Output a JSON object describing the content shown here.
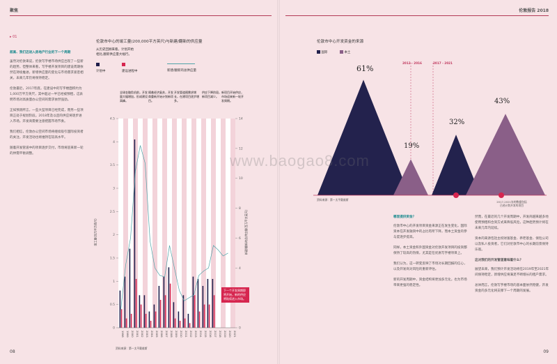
{
  "header": {
    "left": "聚焦",
    "right": "伦敦报告 2018"
  },
  "page_numbers": {
    "left": "08",
    "right": "09"
  },
  "section_tag": "▸ 01",
  "left_text": {
    "heading": "超高、我们迈进入房地产行业的下一个周期",
    "paragraphs": [
      "虽然对伦敦来说，伦敦写字楼市场供应出现了一些新的趋势，但整体来看，写字楼开发项目的建设周期依然在持续推进，新增供应量的变化与市场需求紧密相关，未来几年仍将保持稳定。",
      "伦敦最近，2017年底，在建设中的写字楼面积约为1,000万平方英尺，其中超过一半已经被预租，这表明市场对高质量办公空间的需求依然强劲。",
      "正如预测所言，一些大型项目已经完成，而另一些项目正处于规划阶段。2018年及以后的供应将逐步进入市场，开发商需要注意把握市场节奏。",
      "我们相信，伦敦办公空间市场将继续吸引国际投资者的关注，开发活动也将维持在较高水平。",
      "随着开发管道中的项目逐步交付，市场将迎来新一轮的供需平衡调整。"
    ]
  },
  "bar_chart": {
    "title": "伦敦市中心的竣工量(200,000平方英尺)与新建/翻新的供应量",
    "legend_title": "从历史回顾来看，计划开始\n相比,翻新供应量大幅行。",
    "legend": [
      {
        "label": "计划中",
        "color": "#1f1d4a"
      },
      {
        "label": "建设进程中",
        "color": "#d6264f"
      },
      {
        "label": "新建/翻新的总供应量",
        "color": "#4fa3a8"
      }
    ],
    "annotations": [
      "全球金融危机前，开发量大幅增加，形成建设高峰。",
      "随着经济复苏，开发商重新开始计划新项目。",
      "开发管道随需求增长，在建项目逐步增多。",
      "供应下降阶段，新项目减少。",
      "新项目开始供应，市场迎来新一轮开发周期。"
    ],
    "callout": "下一个开发周期即将开始，新的供应将陆续进入市场。",
    "y_left_title": "竣工量(百万平方英尺)",
    "y_right_title": "新建/翻新的总供应量(百万平方英尺)",
    "y_left_ticks": [
      "0",
      "0.5",
      "1",
      "1.5",
      "2",
      "2.5",
      "3",
      "3.5",
      "4",
      "4.5"
    ],
    "y_right_ticks": [
      "0",
      "2",
      "4",
      "6",
      "8",
      "10",
      "12",
      "14"
    ],
    "source": "资料来源：第一太平戴维斯"
  },
  "chart_data": [
    {
      "type": "bar",
      "title": "伦敦市中心的竣工量(200,000平方英尺)与新建/翻新的供应量",
      "categories": [
        "1998",
        "1999",
        "2000",
        "2001",
        "2002",
        "2003",
        "2004",
        "2005",
        "2006",
        "2007",
        "2008",
        "2009",
        "2010",
        "2011",
        "2012",
        "2013",
        "2014",
        "2015",
        "2016",
        "2017",
        "2018",
        "2019",
        "2020",
        "2021"
      ],
      "series": [
        {
          "name": "计划中",
          "values": [
            0.8,
            1.1,
            1.7,
            4.05,
            0.7,
            0.7,
            0.35,
            0.5,
            0.9,
            1.1,
            1.3,
            0.55,
            0.35,
            0.7,
            0.3,
            1.1,
            1.05,
            0.9,
            1.05,
            1.05,
            0.0,
            0.0,
            0.0,
            0.0
          ]
        },
        {
          "name": "建设进程中",
          "values": [
            0.4,
            0.2,
            0.3,
            1.05,
            0.5,
            0.3,
            0.15,
            0.35,
            0.6,
            0.7,
            0.95,
            0.2,
            0.15,
            0.2,
            0.1,
            0.7,
            0.35,
            0.5,
            0.5,
            0.7,
            0.0,
            0.0,
            0.0,
            0.0
          ]
        },
        {
          "name": "新建/翻新的总供应量",
          "values": [
            1.2,
            4.2,
            6.0,
            10.5,
            12.2,
            11.0,
            5.8,
            4.0,
            3.5,
            3.4,
            5.5,
            4.0,
            2.5,
            1.8,
            2.0,
            2.2,
            3.5,
            3.8,
            4.0,
            5.5,
            5.2,
            4.8,
            5.0,
            null
          ]
        }
      ],
      "ylim": [
        0,
        4.5
      ],
      "y2lim": [
        0,
        14
      ]
    },
    {
      "type": "area",
      "title": "伦敦市中心开发资金的来源",
      "series": [
        {
          "name": "国际",
          "values": [
            61,
            32
          ]
        },
        {
          "name": "本土",
          "values": [
            19,
            43
          ]
        }
      ],
      "categories": [
        "2012 - 2016",
        "2017 - 2021"
      ]
    }
  ],
  "tri_chart": {
    "title": "伦敦市中心开发资金的来源",
    "legend": [
      {
        "label": "国际",
        "color": "#23224d"
      },
      {
        "label": "本土",
        "color": "#8a5f88"
      }
    ],
    "labels": [
      "61%",
      "19%",
      "32%",
      "43%"
    ],
    "periods": [
      "2012 - 2016",
      "2017 - 2021"
    ],
    "note": "2017-2021年的数据包括\n已经计划开发的项目",
    "source": "资料来源：第一太平戴维斯"
  },
  "right_text": {
    "col1_heading": "哪里提供资金？",
    "col1": [
      "伦敦市中心的开发项目资金来源正在发生变化，国际资本在开发融资中的占比有所下降，而本土资金的参与度逐步提高。",
      "同样，本土资金和外国资金对伦敦开发项目的投资都保持了较高的热情，尤其是在优质写字楼项目上。",
      "我们认为，这一转变反映了市场对长期回报的信心，以及开发商对风险的重新评估。",
      "新的开发周期中，资金结构将更加多元化，也为市场带来更强的稳定性。"
    ],
    "col2": [
      "然而，在最近的几个开发周期中，开发商越来越多地使用预租和合资方式来降低风险，这种趋势预计将在未来几年内延续。",
      "资本的来源包括主权财富基金、养老基金、保险公司以及私人投资者，它们对伦敦市中心的长期前景保持乐观。",
      "这对我们的开发管道意味着什么？",
      "展望未来，我们预计开发活动将在2019年至2021年间保持稳定，新增供应将满足不断增长的租户需求。",
      "总体而言，伦敦写字楼市场的基本面依然稳健，开发资金的多元化将支撑下一个周期的发展。"
    ]
  },
  "watermark": "www.baogao8.com"
}
